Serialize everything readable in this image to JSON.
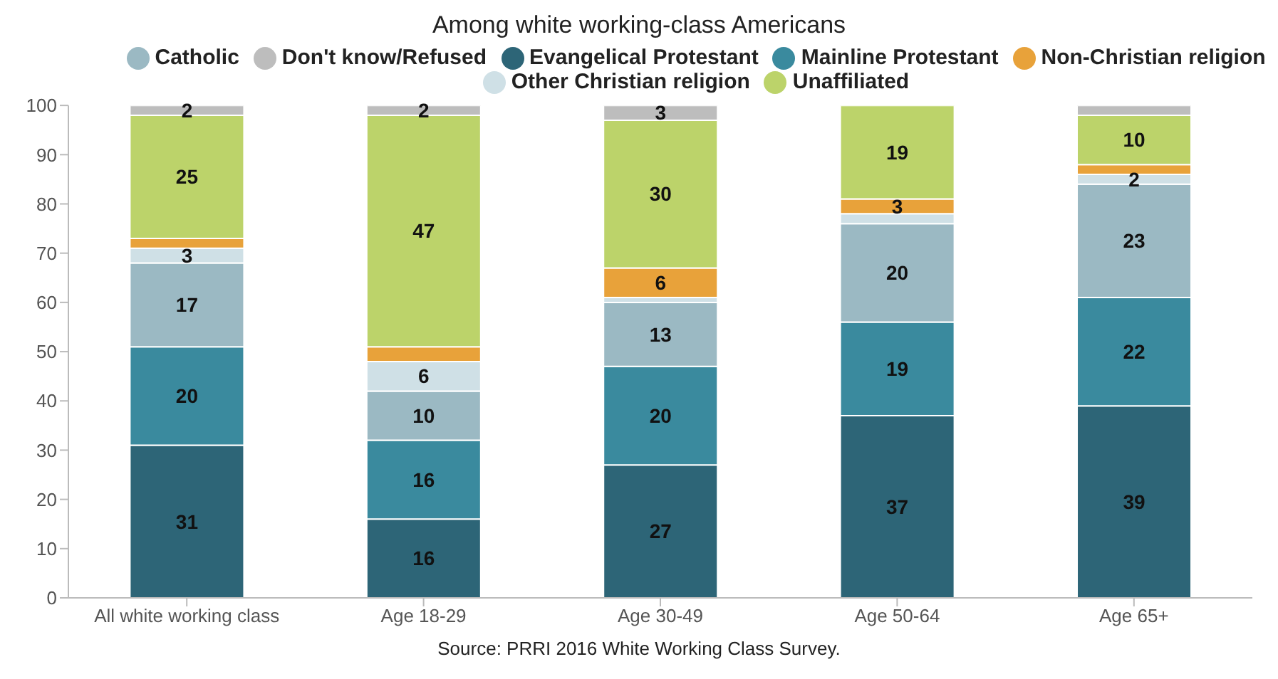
{
  "chart_data": {
    "type": "bar",
    "stacked": true,
    "title": "Among white working-class Americans",
    "categories": [
      "All white working class",
      "Age 18-29",
      "Age 30-49",
      "Age 50-64",
      "Age 65+"
    ],
    "series": [
      {
        "name": "Evangelical Protestant",
        "color": "#2d6577",
        "values": [
          31,
          16,
          27,
          37,
          39
        ],
        "value_labels": [
          "31",
          "16",
          "27",
          "37",
          "39"
        ]
      },
      {
        "name": "Mainline Protestant",
        "color": "#3a8a9e",
        "values": [
          20,
          16,
          20,
          19,
          22
        ],
        "value_labels": [
          "20",
          "16",
          "20",
          "19",
          "22"
        ]
      },
      {
        "name": "Catholic",
        "color": "#9bb9c3",
        "values": [
          17,
          10,
          13,
          20,
          23
        ],
        "value_labels": [
          "17",
          "10",
          "13",
          "20",
          "23"
        ]
      },
      {
        "name": "Other Christian religion",
        "color": "#cfe0e6",
        "values": [
          3,
          6,
          1,
          2,
          2
        ],
        "value_labels": [
          "3",
          "6",
          null,
          null,
          "2"
        ]
      },
      {
        "name": "Non-Christian religion",
        "color": "#e8a23a",
        "values": [
          2,
          3,
          6,
          3,
          2
        ],
        "value_labels": [
          null,
          null,
          "6",
          "3",
          null
        ]
      },
      {
        "name": "Unaffiliated",
        "color": "#bcd36a",
        "values": [
          25,
          47,
          30,
          19,
          10
        ],
        "value_labels": [
          "25",
          "47",
          "30",
          "19",
          "10"
        ]
      },
      {
        "name": "Don't know/Refused",
        "color": "#bdbdbd",
        "values": [
          2,
          2,
          3,
          0,
          2
        ],
        "value_labels": [
          "2",
          "2",
          "3",
          null,
          null
        ]
      }
    ],
    "ylim": [
      0,
      100
    ],
    "yticks": [
      0,
      10,
      20,
      30,
      40,
      50,
      60,
      70,
      80,
      90,
      100
    ],
    "grid": false,
    "legend": "top",
    "annotations": [
      "Source: PRRI 2016 White Working Class Survey."
    ]
  }
}
